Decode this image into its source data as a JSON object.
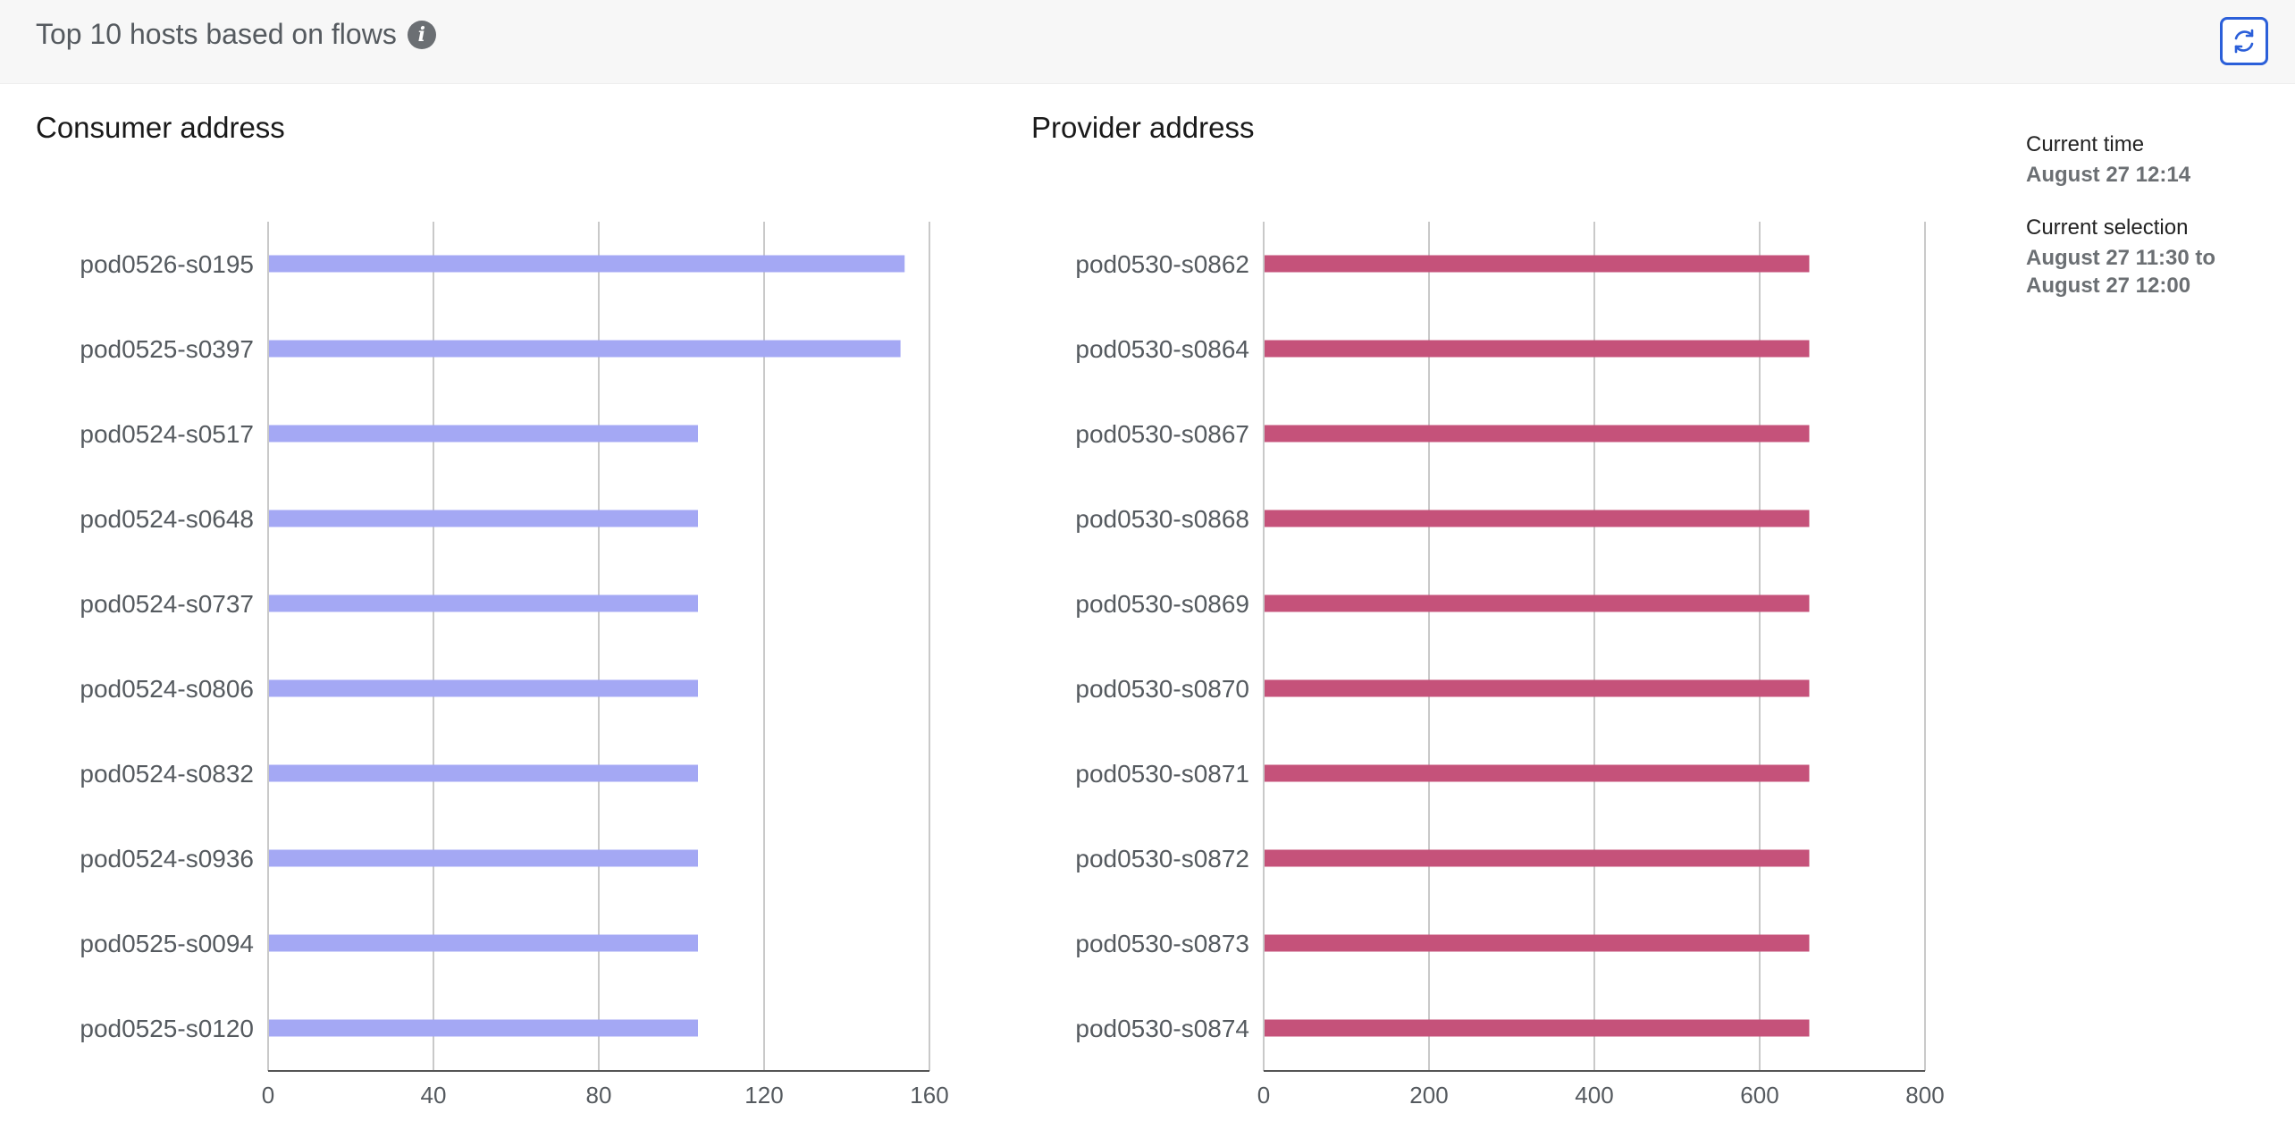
{
  "header": {
    "title": "Top 10 hosts based on flows",
    "info_icon": "info-icon",
    "refresh_icon": "refresh-icon"
  },
  "side_panel": {
    "current_time_label": "Current time",
    "current_time_value": "August 27 12:14",
    "current_selection_label": "Current selection",
    "current_selection_line1": "August 27 11:30 to",
    "current_selection_line2": "August 27 12:00"
  },
  "colors": {
    "consumer_bar": "#a4a8f4",
    "provider_bar": "#c5527a",
    "accent": "#2b5fd9"
  },
  "chart_data": [
    {
      "type": "bar",
      "orientation": "horizontal",
      "title": "Consumer address",
      "categories": [
        "pod0526-s0195",
        "pod0525-s0397",
        "pod0524-s0517",
        "pod0524-s0648",
        "pod0524-s0737",
        "pod0524-s0806",
        "pod0524-s0832",
        "pod0524-s0936",
        "pod0525-s0094",
        "pod0525-s0120"
      ],
      "values": [
        154,
        153,
        104,
        104,
        104,
        104,
        104,
        104,
        104,
        104
      ],
      "xlim": [
        0,
        160
      ],
      "ticks": [
        0,
        40,
        80,
        120,
        160
      ],
      "grid": true
    },
    {
      "type": "bar",
      "orientation": "horizontal",
      "title": "Provider address",
      "categories": [
        "pod0530-s0862",
        "pod0530-s0864",
        "pod0530-s0867",
        "pod0530-s0868",
        "pod0530-s0869",
        "pod0530-s0870",
        "pod0530-s0871",
        "pod0530-s0872",
        "pod0530-s0873",
        "pod0530-s0874"
      ],
      "values": [
        660,
        660,
        660,
        660,
        660,
        660,
        660,
        660,
        660,
        660
      ],
      "xlim": [
        0,
        800
      ],
      "ticks": [
        0,
        200,
        400,
        600,
        800
      ],
      "grid": true
    }
  ]
}
